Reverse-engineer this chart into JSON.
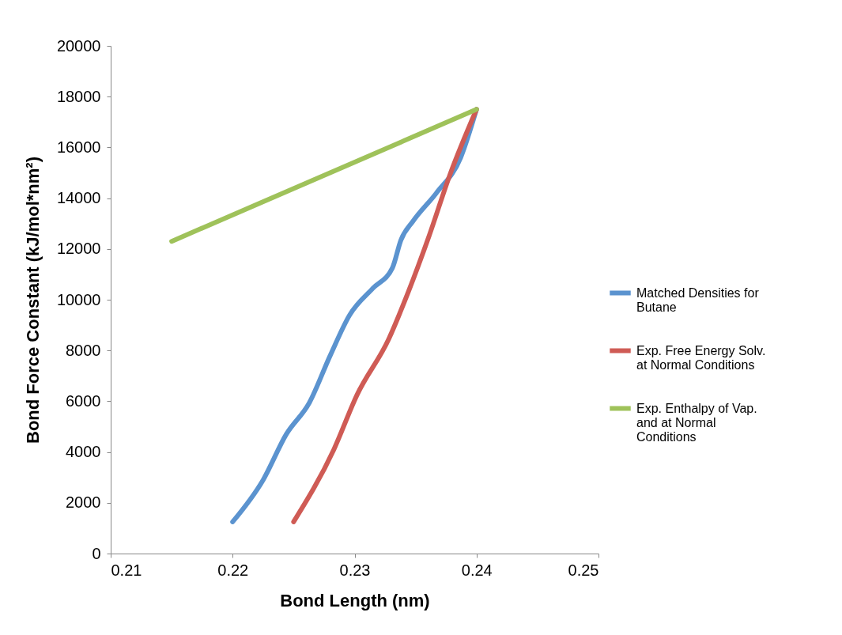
{
  "chart_data": {
    "type": "line",
    "xlabel": "Bond Length (nm)",
    "ylabel": "Bond Force Constant (kJ/mol*nm²)",
    "xlim": [
      0.21,
      0.25
    ],
    "xticks": [
      0.21,
      0.22,
      0.23,
      0.24,
      0.25
    ],
    "ylim": [
      0,
      20000
    ],
    "yticks": [
      0,
      2000,
      4000,
      6000,
      8000,
      10000,
      12000,
      14000,
      16000,
      18000,
      20000
    ],
    "grid": false,
    "legend": "right",
    "marker": "none",
    "line_style": "solid",
    "series": [
      {
        "name": "Matched Densities for Butane",
        "color": "#5b93cf",
        "x": [
          0.22,
          0.2225,
          0.2244,
          0.2263,
          0.228,
          0.2296,
          0.2315,
          0.2331,
          0.2338,
          0.2348,
          0.2367,
          0.2387,
          0.24
        ],
        "values": [
          1250,
          2900,
          4700,
          5950,
          7800,
          9400,
          10450,
          11250,
          12350,
          13100,
          14200,
          15600,
          17500
        ]
      },
      {
        "name": "Exp. Free Energy Solv. at Normal Conditions",
        "color": "#cf5b55",
        "x": [
          0.225,
          0.2283,
          0.2302,
          0.2328,
          0.2344,
          0.2361,
          0.2378,
          0.24
        ],
        "values": [
          1250,
          4100,
          6250,
          8450,
          10300,
          12500,
          14900,
          17500
        ]
      },
      {
        "name": "Exp. Enthalpy of Vap. and at Normal Conditions",
        "color": "#9fc25a",
        "x": [
          0.215,
          0.24
        ],
        "values": [
          12300,
          17500
        ]
      }
    ]
  }
}
